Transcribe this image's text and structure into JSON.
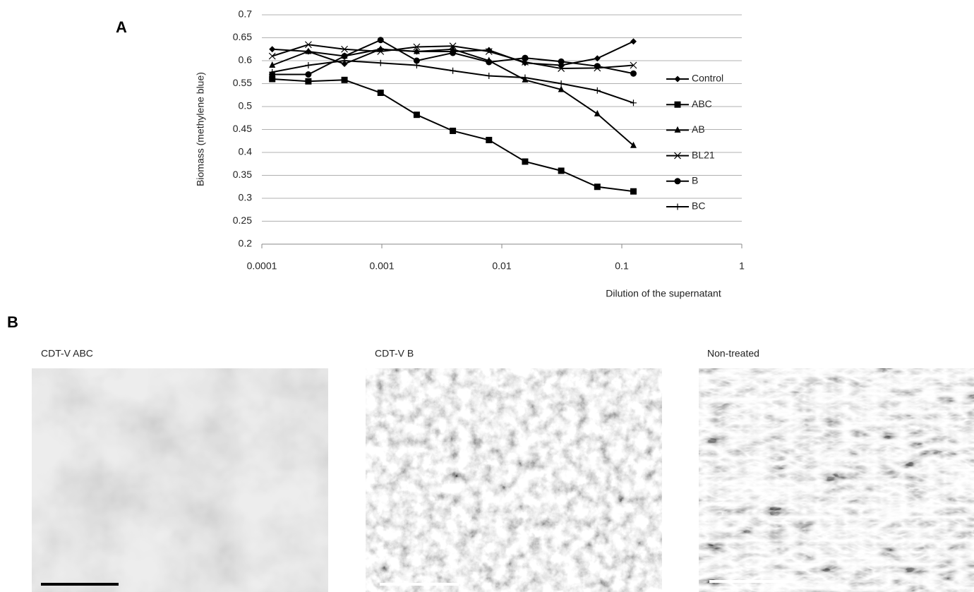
{
  "figure": {
    "label_a": "A",
    "label_b": "B"
  },
  "chart_data": {
    "type": "line",
    "x_label": "Dilution of the supernatant",
    "y_label": "Biomass (methylene blue)",
    "x": [
      0.0001220703125,
      0.000244140625,
      0.00048828125,
      0.0009765625,
      0.001953125,
      0.00390625,
      0.0078125,
      0.015625,
      0.03125,
      0.0625,
      0.125
    ],
    "xlim": [
      0.0001,
      1
    ],
    "xticks": [
      0.0001,
      0.001,
      0.01,
      0.1,
      1
    ],
    "xscale": "log",
    "ylim": [
      0.2,
      0.7
    ],
    "yticks": [
      0.2,
      0.25,
      0.3,
      0.35,
      0.4,
      0.45,
      0.5,
      0.55,
      0.6,
      0.65,
      0.7
    ],
    "grid": true,
    "legend": "right",
    "series": [
      {
        "name": "Control",
        "color": "#000000",
        "marker": "diamond",
        "values": [
          0.625,
          0.62,
          0.593,
          0.625,
          0.62,
          0.62,
          0.623,
          0.595,
          0.59,
          0.605,
          0.642
        ]
      },
      {
        "name": "ABC",
        "color": "#000000",
        "marker": "square",
        "values": [
          0.56,
          0.555,
          0.558,
          0.53,
          0.482,
          0.447,
          0.427,
          0.38,
          0.36,
          0.325,
          0.315
        ]
      },
      {
        "name": "AB",
        "color": "#000000",
        "marker": "triangle",
        "values": [
          0.59,
          0.62,
          0.61,
          0.625,
          0.62,
          0.625,
          0.6,
          0.558,
          0.537,
          0.484,
          0.415
        ]
      },
      {
        "name": "BL21",
        "color": "#000000",
        "marker": "x",
        "values": [
          0.61,
          0.635,
          0.625,
          0.62,
          0.63,
          0.632,
          0.62,
          0.597,
          0.583,
          0.584,
          0.59
        ]
      },
      {
        "name": "B",
        "color": "#000000",
        "marker": "circle",
        "values": [
          0.57,
          0.57,
          0.61,
          0.645,
          0.6,
          0.617,
          0.597,
          0.606,
          0.598,
          0.588,
          0.572
        ]
      },
      {
        "name": "BC",
        "color": "#000000",
        "marker": "plus",
        "values": [
          0.575,
          0.59,
          0.6,
          0.595,
          0.59,
          0.578,
          0.567,
          0.563,
          0.55,
          0.535,
          0.508
        ]
      }
    ]
  },
  "micrographs": [
    {
      "caption": "CDT-V ABC"
    },
    {
      "caption": "CDT-V B"
    },
    {
      "caption": "Non-treated"
    }
  ]
}
